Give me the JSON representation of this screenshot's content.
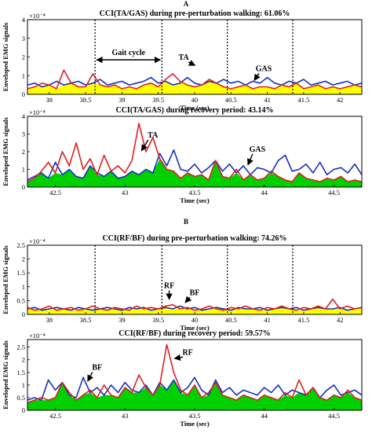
{
  "figure": {
    "panel_letters": [
      "A",
      "B"
    ]
  },
  "chart_data": [
    {
      "type": "line",
      "panel": "A",
      "title": "CCI(TA/GAS) during pre-perturbation walking: 61.06%",
      "xlabel": "Time (sec)",
      "ylabel": "Enveloped EMG signals",
      "y_exponent": "×10⁻⁴",
      "xlim": [
        37.7,
        42.3
      ],
      "ylim": [
        0,
        4
      ],
      "xticks": [
        "38",
        "38.5",
        "39",
        "39.5",
        "40",
        "40.5",
        "41",
        "41.5",
        "42"
      ],
      "yticks": [
        "0",
        "1",
        "2",
        "3",
        "4"
      ],
      "gait_events": [
        38.63,
        39.55,
        40.45,
        41.35
      ],
      "annotations": [
        {
          "text": "Gait cycle",
          "x": 39.1,
          "y": 2.1
        },
        {
          "text": "TA",
          "x": 39.85,
          "y": 1.85
        },
        {
          "text": "GAS",
          "x": 40.95,
          "y": 1.25
        }
      ],
      "shared_area_color": "yellow",
      "series": [
        {
          "name": "TA",
          "color": "#e02020",
          "x": [
            37.7,
            37.8,
            37.9,
            38.0,
            38.1,
            38.2,
            38.3,
            38.4,
            38.5,
            38.6,
            38.7,
            38.8,
            38.9,
            39.0,
            39.1,
            39.2,
            39.3,
            39.4,
            39.5,
            39.6,
            39.7,
            39.8,
            39.9,
            40.0,
            40.1,
            40.2,
            40.3,
            40.4,
            40.5,
            40.6,
            40.7,
            40.8,
            40.9,
            41.0,
            41.1,
            41.2,
            41.3,
            41.4,
            41.5,
            41.6,
            41.7,
            41.8,
            41.9,
            42.0,
            42.1,
            42.2,
            42.3
          ],
          "values": [
            0.3,
            0.4,
            0.6,
            0.5,
            0.3,
            1.3,
            0.6,
            0.4,
            0.4,
            1.1,
            0.5,
            0.4,
            0.5,
            0.3,
            0.4,
            0.3,
            0.5,
            0.6,
            0.4,
            0.8,
            1.1,
            0.7,
            0.5,
            0.4,
            0.5,
            0.8,
            0.6,
            0.4,
            0.3,
            0.4,
            0.5,
            0.3,
            0.4,
            0.4,
            0.3,
            0.5,
            0.4,
            0.6,
            0.3,
            0.4,
            0.5,
            0.3,
            0.4,
            0.3,
            0.4,
            0.5,
            0.4
          ]
        },
        {
          "name": "GAS",
          "color": "#1530c0",
          "x": [
            37.7,
            37.8,
            37.9,
            38.0,
            38.1,
            38.2,
            38.3,
            38.4,
            38.5,
            38.6,
            38.7,
            38.8,
            38.9,
            39.0,
            39.1,
            39.2,
            39.3,
            39.4,
            39.5,
            39.6,
            39.7,
            39.8,
            39.9,
            40.0,
            40.1,
            40.2,
            40.3,
            40.4,
            40.5,
            40.6,
            40.7,
            40.8,
            40.9,
            41.0,
            41.1,
            41.2,
            41.3,
            41.4,
            41.5,
            41.6,
            41.7,
            41.8,
            41.9,
            42.0,
            42.1,
            42.2,
            42.3
          ],
          "values": [
            0.5,
            0.6,
            0.4,
            0.5,
            0.7,
            0.5,
            0.6,
            0.7,
            0.5,
            0.6,
            0.8,
            0.5,
            0.6,
            0.7,
            0.5,
            0.6,
            0.7,
            0.9,
            0.6,
            0.7,
            0.5,
            0.6,
            0.9,
            0.6,
            0.5,
            0.7,
            0.6,
            0.8,
            0.6,
            0.7,
            0.5,
            0.7,
            0.6,
            0.9,
            0.6,
            0.5,
            0.7,
            0.6,
            0.8,
            0.5,
            0.6,
            0.7,
            0.5,
            0.6,
            0.7,
            0.5,
            0.6
          ]
        }
      ]
    },
    {
      "type": "line",
      "panel": "A",
      "title": "CCI(TA/GAS) during recovery period: 43.14%",
      "xlabel": "Time (sec)",
      "ylabel": "Enveloped EMG signals",
      "y_exponent": "×10⁻⁴",
      "xlim": [
        42.3,
        44.7
      ],
      "ylim": [
        0,
        4
      ],
      "xticks": [
        "42.5",
        "43",
        "43.5",
        "44",
        "44.5"
      ],
      "yticks": [
        "0",
        "1",
        "2",
        "3",
        "4"
      ],
      "gait_events": [],
      "annotations": [
        {
          "text": "TA",
          "x": 43.2,
          "y": 2.8
        },
        {
          "text": "GAS",
          "x": 43.95,
          "y": 2.0
        }
      ],
      "shared_area_color": "#00d000",
      "series": [
        {
          "name": "TA",
          "color": "#e02020",
          "x": [
            42.3,
            42.35,
            42.4,
            42.45,
            42.5,
            42.55,
            42.6,
            42.65,
            42.7,
            42.75,
            42.8,
            42.85,
            42.9,
            42.95,
            43.0,
            43.05,
            43.1,
            43.15,
            43.2,
            43.25,
            43.3,
            43.35,
            43.4,
            43.45,
            43.5,
            43.55,
            43.6,
            43.65,
            43.7,
            43.75,
            43.8,
            43.85,
            43.9,
            43.95,
            44.0,
            44.05,
            44.1,
            44.15,
            44.2,
            44.25,
            44.3,
            44.35,
            44.4,
            44.45,
            44.5,
            44.55,
            44.6,
            44.65,
            44.7
          ],
          "values": [
            0.3,
            0.5,
            0.9,
            1.4,
            0.8,
            2.0,
            1.2,
            2.5,
            1.0,
            1.6,
            0.7,
            1.8,
            0.9,
            1.2,
            0.8,
            1.5,
            3.6,
            2.0,
            2.8,
            1.6,
            1.0,
            0.9,
            0.5,
            0.8,
            0.6,
            0.7,
            0.4,
            1.5,
            0.6,
            0.5,
            1.0,
            0.4,
            0.7,
            0.4,
            0.5,
            0.9,
            0.6,
            0.4,
            0.3,
            0.8,
            0.5,
            0.4,
            0.3,
            0.5,
            0.4,
            0.6,
            0.3,
            0.4,
            0.3
          ]
        },
        {
          "name": "GAS",
          "color": "#1530c0",
          "x": [
            42.3,
            42.35,
            42.4,
            42.45,
            42.5,
            42.55,
            42.6,
            42.65,
            42.7,
            42.75,
            42.8,
            42.85,
            42.9,
            42.95,
            43.0,
            43.05,
            43.1,
            43.15,
            43.2,
            43.25,
            43.3,
            43.35,
            43.4,
            43.45,
            43.5,
            43.55,
            43.6,
            43.65,
            43.7,
            43.75,
            43.8,
            43.85,
            43.9,
            43.95,
            44.0,
            44.05,
            44.1,
            44.15,
            44.2,
            44.25,
            44.3,
            44.35,
            44.4,
            44.45,
            44.5,
            44.55,
            44.6,
            44.65,
            44.7
          ],
          "values": [
            0.4,
            0.6,
            0.8,
            0.5,
            1.4,
            0.7,
            1.0,
            0.6,
            0.5,
            1.2,
            0.8,
            0.6,
            0.9,
            0.5,
            0.6,
            0.9,
            0.7,
            1.0,
            0.8,
            1.9,
            1.2,
            2.1,
            1.0,
            0.9,
            1.3,
            0.8,
            1.1,
            1.5,
            0.9,
            1.3,
            0.8,
            1.2,
            0.7,
            1.1,
            1.0,
            0.8,
            1.5,
            1.8,
            0.9,
            1.0,
            1.3,
            0.8,
            1.4,
            0.7,
            1.0,
            1.1,
            0.8,
            1.3,
            0.7
          ]
        }
      ]
    },
    {
      "type": "line",
      "panel": "B",
      "title": "CCI(RF/BF) during pre-perturbation walking: 74.26%",
      "xlabel": "Time (sec)",
      "ylabel": "Enveloped EMG signals",
      "y_exponent": "×10⁻⁴",
      "xlim": [
        37.7,
        42.3
      ],
      "ylim": [
        0,
        2.5
      ],
      "xticks": [
        "38",
        "38.5",
        "39",
        "39.5",
        "40",
        "40.5",
        "41",
        "41.5",
        "42"
      ],
      "yticks": [
        "0",
        "0.5",
        "1",
        "1.5",
        "2",
        "2.5"
      ],
      "gait_events": [
        38.63,
        39.55,
        40.45,
        41.35
      ],
      "annotations": [
        {
          "text": "RF",
          "x": 39.65,
          "y": 0.95
        },
        {
          "text": "BF",
          "x": 40.0,
          "y": 0.7
        }
      ],
      "shared_area_color": "yellow",
      "series": [
        {
          "name": "RF",
          "color": "#e02020",
          "x": [
            37.7,
            37.8,
            37.9,
            38.0,
            38.1,
            38.2,
            38.3,
            38.4,
            38.5,
            38.6,
            38.7,
            38.8,
            38.9,
            39.0,
            39.1,
            39.2,
            39.3,
            39.4,
            39.5,
            39.6,
            39.7,
            39.8,
            39.9,
            40.0,
            40.1,
            40.2,
            40.3,
            40.4,
            40.5,
            40.6,
            40.7,
            40.8,
            40.9,
            41.0,
            41.1,
            41.2,
            41.3,
            41.4,
            41.5,
            41.6,
            41.7,
            41.8,
            41.9,
            42.0,
            42.1,
            42.2,
            42.3
          ],
          "values": [
            0.25,
            0.15,
            0.2,
            0.3,
            0.15,
            0.2,
            0.25,
            0.15,
            0.2,
            0.3,
            0.2,
            0.15,
            0.25,
            0.2,
            0.15,
            0.3,
            0.2,
            0.25,
            0.2,
            0.3,
            0.35,
            0.2,
            0.25,
            0.15,
            0.2,
            0.3,
            0.2,
            0.15,
            0.25,
            0.2,
            0.3,
            0.2,
            0.15,
            0.25,
            0.2,
            0.3,
            0.2,
            0.15,
            0.25,
            0.2,
            0.3,
            0.2,
            0.55,
            0.2,
            0.3,
            0.2,
            0.25
          ]
        },
        {
          "name": "BF",
          "color": "#1530c0",
          "x": [
            37.7,
            37.8,
            37.9,
            38.0,
            38.1,
            38.2,
            38.3,
            38.4,
            38.5,
            38.6,
            38.7,
            38.8,
            38.9,
            39.0,
            39.1,
            39.2,
            39.3,
            39.4,
            39.5,
            39.6,
            39.7,
            39.8,
            39.9,
            40.0,
            40.1,
            40.2,
            40.3,
            40.4,
            40.5,
            40.6,
            40.7,
            40.8,
            40.9,
            41.0,
            41.1,
            41.2,
            41.3,
            41.4,
            41.5,
            41.6,
            41.7,
            41.8,
            41.9,
            42.0,
            42.1,
            42.2,
            42.3
          ],
          "values": [
            0.2,
            0.25,
            0.15,
            0.2,
            0.25,
            0.2,
            0.15,
            0.25,
            0.2,
            0.15,
            0.2,
            0.25,
            0.2,
            0.15,
            0.25,
            0.2,
            0.25,
            0.15,
            0.2,
            0.25,
            0.2,
            0.3,
            0.2,
            0.25,
            0.15,
            0.2,
            0.25,
            0.2,
            0.15,
            0.25,
            0.2,
            0.2,
            0.25,
            0.15,
            0.2,
            0.25,
            0.2,
            0.25,
            0.15,
            0.2,
            0.25,
            0.2,
            0.2,
            0.25,
            0.15,
            0.2,
            0.25
          ]
        }
      ]
    },
    {
      "type": "line",
      "panel": "B",
      "title": "CCI(RF/BF) during recovery period: 59.57%",
      "xlabel": "Time (sec)",
      "ylabel": "Enveloped EMG signals",
      "y_exponent": "×10⁻⁴",
      "xlim": [
        42.3,
        44.7
      ],
      "ylim": [
        0,
        2.8
      ],
      "xticks": [
        "42.5",
        "43",
        "43.5",
        "44",
        "44.5"
      ],
      "yticks": [
        "0",
        "0.5",
        "1",
        "1.5",
        "2",
        "2.5"
      ],
      "gait_events": [],
      "annotations": [
        {
          "text": "BF",
          "x": 42.8,
          "y": 1.6
        },
        {
          "text": "RF",
          "x": 43.45,
          "y": 2.2
        }
      ],
      "shared_area_color": "#00d000",
      "series": [
        {
          "name": "RF",
          "color": "#e02020",
          "x": [
            42.3,
            42.35,
            42.4,
            42.45,
            42.5,
            42.55,
            42.6,
            42.65,
            42.7,
            42.75,
            42.8,
            42.85,
            42.9,
            42.95,
            43.0,
            43.05,
            43.1,
            43.15,
            43.2,
            43.25,
            43.3,
            43.35,
            43.4,
            43.45,
            43.5,
            43.55,
            43.6,
            43.65,
            43.7,
            43.75,
            43.8,
            43.85,
            43.9,
            43.95,
            44.0,
            44.05,
            44.1,
            44.15,
            44.2,
            44.25,
            44.3,
            44.35,
            44.4,
            44.45,
            44.5,
            44.55,
            44.6,
            44.65,
            44.7
          ],
          "values": [
            0.3,
            0.4,
            0.5,
            0.4,
            0.5,
            1.1,
            0.7,
            0.4,
            0.6,
            0.8,
            0.5,
            1.0,
            0.6,
            0.5,
            0.9,
            0.7,
            1.4,
            0.9,
            0.6,
            1.0,
            2.6,
            1.5,
            0.8,
            0.6,
            1.0,
            0.5,
            0.7,
            1.1,
            0.6,
            0.5,
            0.4,
            0.6,
            0.5,
            0.4,
            0.6,
            0.5,
            0.4,
            0.7,
            0.5,
            1.2,
            0.6,
            0.9,
            0.5,
            0.4,
            0.6,
            0.5,
            0.8,
            0.5,
            0.4
          ]
        },
        {
          "name": "BF",
          "color": "#1530c0",
          "x": [
            42.3,
            42.35,
            42.4,
            42.45,
            42.5,
            42.55,
            42.6,
            42.65,
            42.7,
            42.75,
            42.8,
            42.85,
            42.9,
            42.95,
            43.0,
            43.05,
            43.1,
            43.15,
            43.2,
            43.25,
            43.3,
            43.35,
            43.4,
            43.45,
            43.5,
            43.55,
            43.6,
            43.65,
            43.7,
            43.75,
            43.8,
            43.85,
            43.9,
            43.95,
            44.0,
            44.05,
            44.1,
            44.15,
            44.2,
            44.25,
            44.3,
            44.35,
            44.4,
            44.45,
            44.5,
            44.55,
            44.6,
            44.65,
            44.7
          ],
          "values": [
            0.4,
            0.5,
            0.4,
            1.2,
            0.8,
            1.1,
            0.6,
            0.5,
            1.3,
            0.7,
            0.9,
            0.6,
            1.0,
            0.7,
            1.1,
            0.8,
            0.7,
            1.0,
            0.6,
            1.1,
            0.8,
            1.2,
            0.7,
            0.9,
            1.3,
            0.8,
            0.6,
            1.2,
            0.7,
            0.9,
            0.6,
            0.8,
            0.7,
            0.6,
            0.9,
            0.7,
            1.0,
            0.6,
            0.8,
            0.7,
            0.6,
            0.9,
            0.5,
            0.8,
            1.0,
            0.6,
            0.7,
            0.8,
            0.6
          ]
        }
      ]
    }
  ]
}
